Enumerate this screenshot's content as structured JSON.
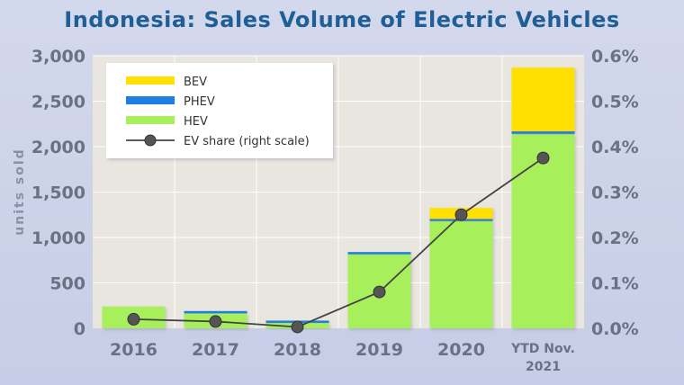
{
  "chart_data": {
    "type": "bar",
    "title": "Indonesia: Sales Volume of Electric Vehicles",
    "ylabel": "units sold",
    "ylim": [
      0,
      3000
    ],
    "y2lim": [
      0,
      0.6
    ],
    "y_ticks": [
      "0",
      "500",
      "1,000",
      "1,500",
      "2,000",
      "2,500",
      "3,000"
    ],
    "y2_ticks": [
      "0.0%",
      "0.1%",
      "0.2%",
      "0.3%",
      "0.4%",
      "0.5%",
      "0.6%"
    ],
    "categories": [
      "2016",
      "2017",
      "2018",
      "2019",
      "2020",
      "YTD Nov. 2021"
    ],
    "stacked": true,
    "series": [
      {
        "name": "HEV",
        "color": "#a8ef5c",
        "values": [
          240,
          165,
          65,
          820,
          1190,
          2140
        ]
      },
      {
        "name": "PHEV",
        "color": "#1f7fe0",
        "values": [
          0,
          25,
          20,
          20,
          15,
          30
        ]
      },
      {
        "name": "BEV",
        "color": "#ffe000",
        "values": [
          0,
          0,
          0,
          0,
          120,
          700
        ]
      }
    ],
    "line_series": {
      "name": "EV share (right scale)",
      "axis": "right",
      "values": [
        0.02,
        0.015,
        0.003,
        0.08,
        0.25,
        0.375
      ],
      "color": "#444444"
    },
    "legend": [
      "BEV",
      "PHEV",
      "HEV",
      "EV share (right scale)"
    ],
    "legend_position": "top-left",
    "grid": true
  }
}
